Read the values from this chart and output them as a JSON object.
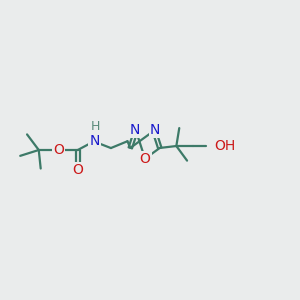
{
  "bg_color": "#eaecec",
  "bond_color": "#3d7a68",
  "atom_colors": {
    "N": "#1a1acc",
    "O": "#cc1a1a",
    "H": "#5a8a7a",
    "C": "#3d7a68"
  },
  "font_size": 10,
  "lw": 1.6
}
